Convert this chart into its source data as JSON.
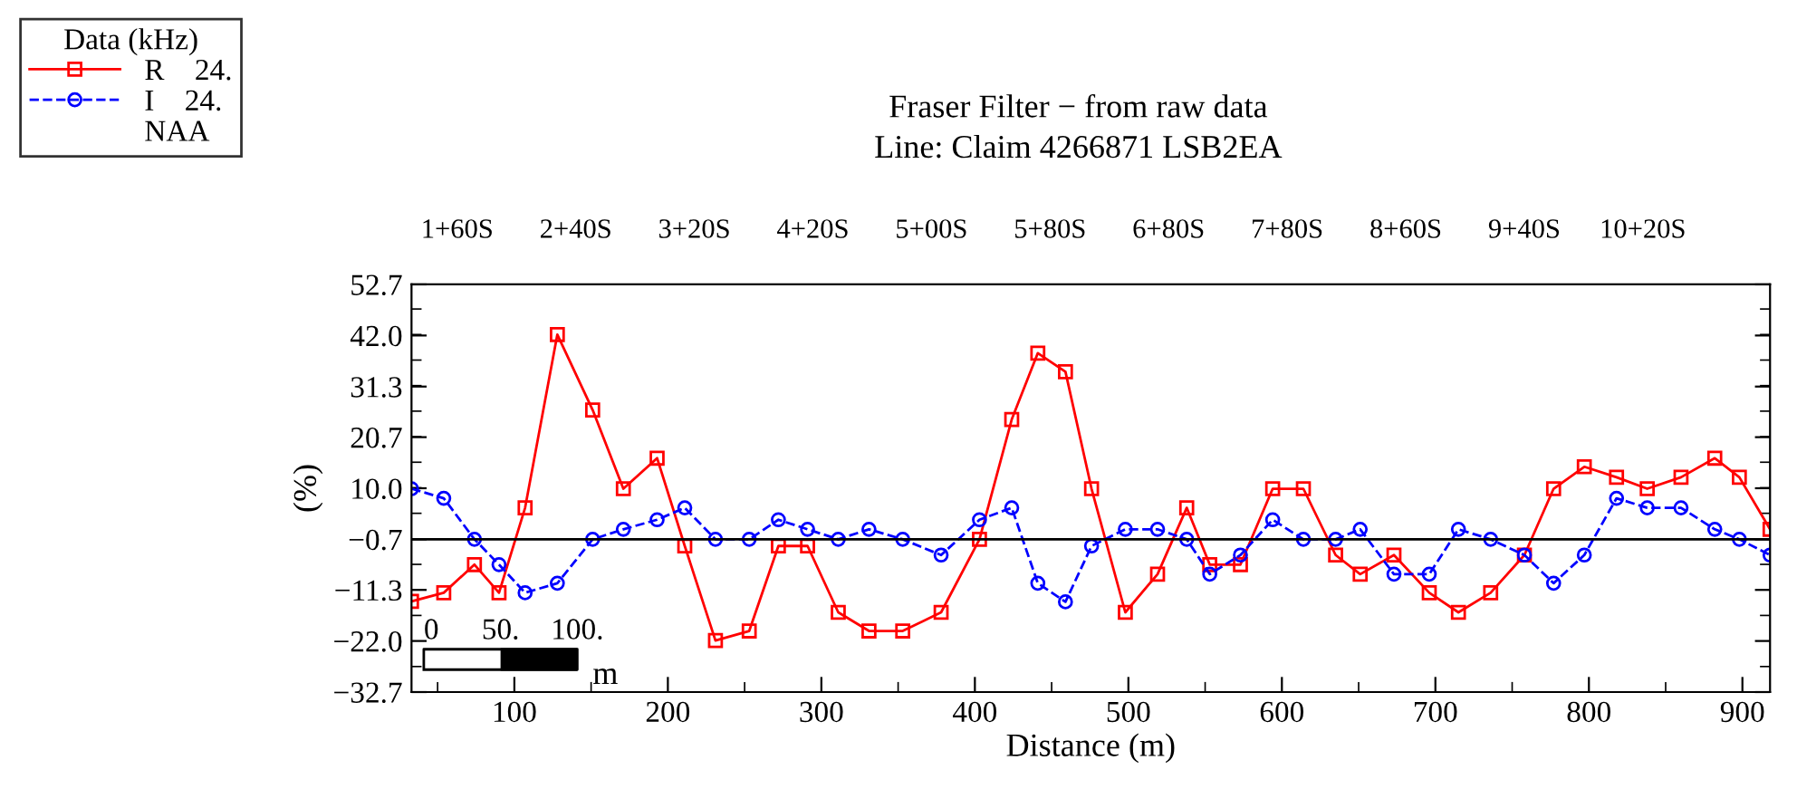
{
  "chart_data": {
    "type": "line",
    "title": "Fraser Filter − from raw data",
    "subtitle": "Line: Claim 4266871 LSB2EA",
    "xlabel": "Distance (m)",
    "ylabel": "(%)",
    "legend_title": "Data (kHz)",
    "legend": "top left",
    "grid": false,
    "xlim": [
      33,
      918
    ],
    "xticks": [
      100,
      200,
      300,
      400,
      500,
      600,
      700,
      800,
      900
    ],
    "ylim": [
      -32.7,
      52.7
    ],
    "yticks": [
      {
        "value": 52.7,
        "label": "52.7"
      },
      {
        "value": 42.0,
        "label": "42.0"
      },
      {
        "value": 31.3,
        "label": "31.3"
      },
      {
        "value": 20.7,
        "label": "20.7"
      },
      {
        "value": 10.0,
        "label": "10.0"
      },
      {
        "value": -0.7,
        "label": "−0.7"
      },
      {
        "value": -11.3,
        "label": "−11.3"
      },
      {
        "value": -22.0,
        "label": "−22.0"
      },
      {
        "value": -32.7,
        "label": "−32.7"
      }
    ],
    "ref_lines": [
      {
        "axis": "y",
        "value": -0.7,
        "color": "#000000",
        "line_style": "solid"
      }
    ],
    "annotations": [
      "NAA",
      "0",
      "50.",
      "100.",
      "m",
      "1+60S",
      "2+40S",
      "3+20S",
      "4+20S",
      "5+00S",
      "5+80S",
      "6+80S",
      "7+80S",
      "8+60S",
      "9+40S",
      "10+20S"
    ],
    "series": [
      {
        "name": "R    24.",
        "color": "#ff0000",
        "marker": "square",
        "line_style": "solid",
        "x": [
          33,
          54,
          74,
          90,
          107,
          128,
          151,
          171,
          193,
          211,
          231,
          253,
          272,
          291,
          311,
          331,
          353,
          378,
          403,
          424,
          441,
          459,
          476,
          498,
          519,
          538,
          553,
          573,
          594,
          614,
          635,
          651,
          673,
          696,
          715,
          736,
          758,
          777,
          797,
          818,
          838,
          860,
          882,
          898,
          918
        ],
        "values": [
          -13.7,
          -11.9,
          -6.0,
          -11.9,
          5.9,
          42.2,
          26.4,
          9.9,
          16.3,
          -2.1,
          -21.9,
          -19.9,
          -2.1,
          -2.1,
          -16.0,
          -19.9,
          -19.9,
          -16.0,
          -0.7,
          24.4,
          38.3,
          34.4,
          9.9,
          -16.0,
          -8.0,
          5.9,
          -6.0,
          -6.0,
          9.9,
          9.9,
          -4.0,
          -8.0,
          -4.0,
          -11.9,
          -16.0,
          -11.9,
          -4.0,
          9.9,
          14.5,
          12.3,
          9.9,
          12.3,
          16.3,
          12.3,
          1.4
        ]
      },
      {
        "name": "I    24.",
        "color": "#0000ff",
        "marker": "circle",
        "line_style": "dashed",
        "x": [
          33,
          54,
          74,
          90,
          107,
          128,
          151,
          171,
          193,
          211,
          231,
          253,
          272,
          291,
          311,
          331,
          353,
          378,
          403,
          424,
          441,
          459,
          476,
          498,
          519,
          538,
          553,
          573,
          594,
          614,
          635,
          651,
          673,
          696,
          715,
          736,
          758,
          777,
          797,
          818,
          838,
          860,
          882,
          898,
          918
        ],
        "values": [
          9.9,
          7.9,
          -0.7,
          -6.0,
          -11.9,
          -9.9,
          -0.7,
          1.4,
          3.4,
          5.9,
          -0.7,
          -0.7,
          3.4,
          1.4,
          -0.7,
          1.4,
          -0.7,
          -4.0,
          3.4,
          5.9,
          -9.9,
          -13.8,
          -2.1,
          1.4,
          1.4,
          -0.7,
          -8.0,
          -4.0,
          3.4,
          -0.7,
          -0.7,
          1.4,
          -8.0,
          -8.0,
          1.4,
          -0.7,
          -4.0,
          -9.9,
          -4.0,
          7.9,
          5.9,
          5.9,
          1.4,
          -0.7,
          -4.0
        ]
      }
    ]
  }
}
